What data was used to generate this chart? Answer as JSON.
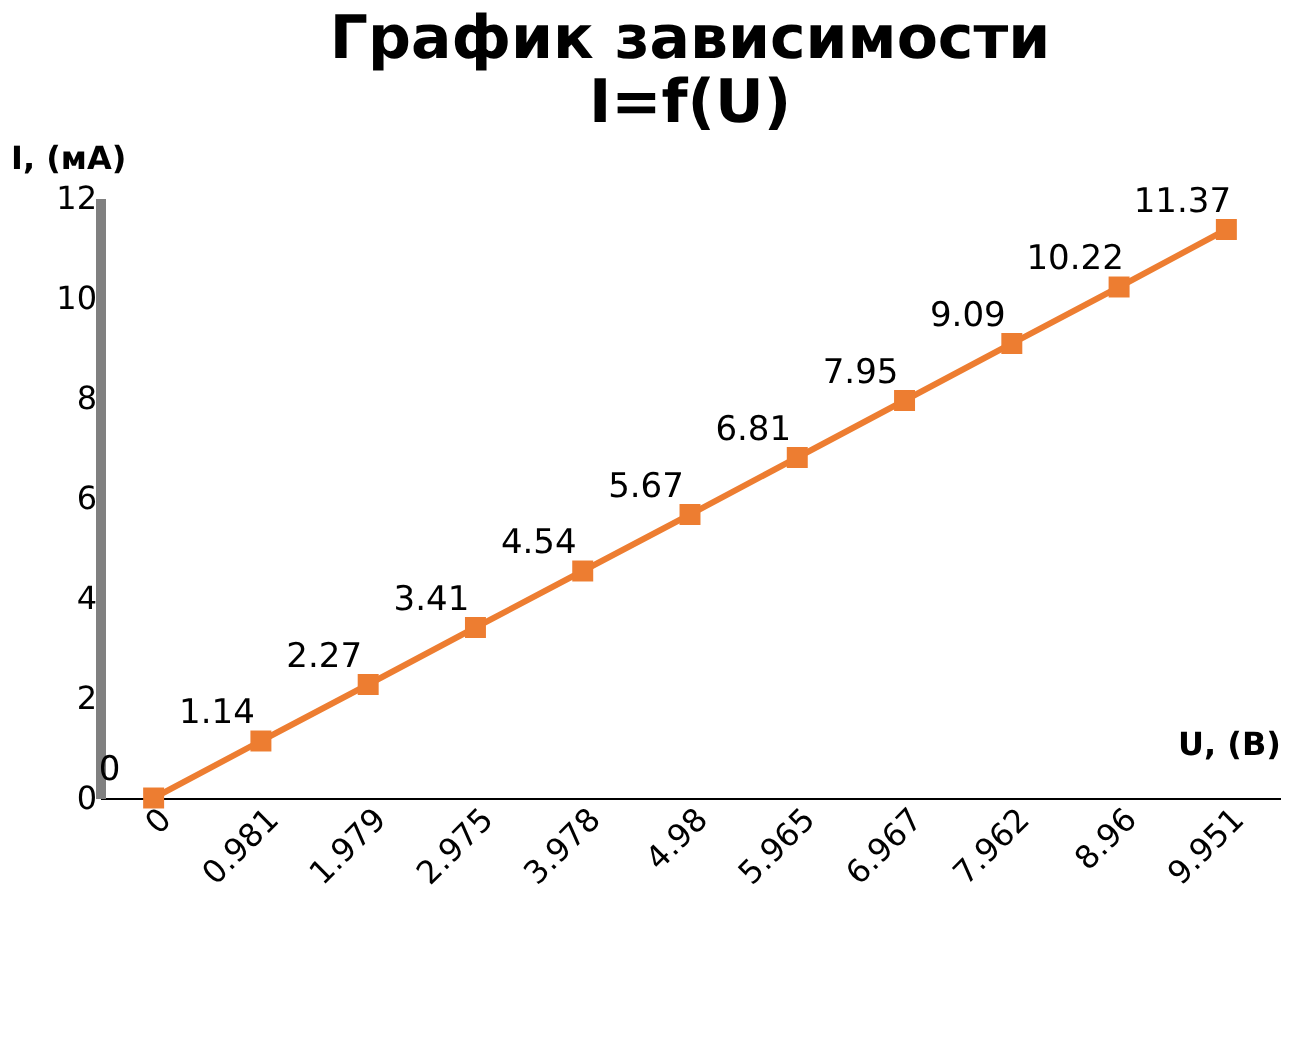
{
  "chart_data": {
    "type": "line",
    "title": [
      "График зависимости",
      "I=f(U)"
    ],
    "xlabel": "U, (B)",
    "ylabel": "I, (мА)",
    "categories": [
      "0",
      "0.981",
      "1.979",
      "2.975",
      "3.978",
      "4.98",
      "5.965",
      "6.967",
      "7.962",
      "8.96",
      "9.951"
    ],
    "series": [
      {
        "color": "#ed7d31",
        "values": [
          0,
          1.14,
          2.27,
          3.41,
          4.54,
          5.67,
          6.81,
          7.95,
          9.09,
          10.22,
          11.37
        ]
      }
    ],
    "ylim": [
      0,
      12
    ],
    "yticks": [
      0,
      2,
      4,
      6,
      8,
      10,
      12
    ],
    "grid": false,
    "legend": false,
    "marker": "square",
    "line_style": "solid",
    "data_labels": true
  }
}
